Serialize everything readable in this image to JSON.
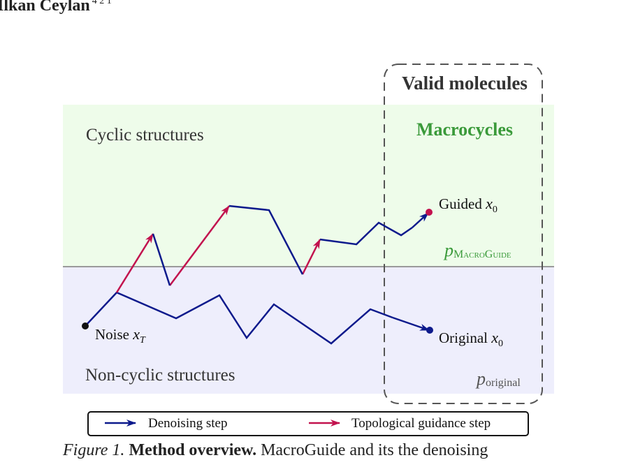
{
  "header": {
    "author": "İlkan Ceylan",
    "affiliation_marks": "4 2 1"
  },
  "diagram": {
    "valid_box_title": "Valid molecules",
    "region_top_label": "Cyclic structures",
    "region_bottom_label": "Non-cyclic structures",
    "macrocycles_label": "Macrocycles",
    "guided_label": "Guided ",
    "guided_var": "x",
    "guided_sub": "0",
    "original_label": "Original ",
    "original_var": "x",
    "original_sub": "0",
    "noise_label": "Noise ",
    "noise_var": "x",
    "noise_sub": "T",
    "p_macroguide_var": "p",
    "p_macroguide_sub": "MacroGuide",
    "p_original_var": "p",
    "p_original_sub": "original",
    "colors": {
      "cyclic_bg": "#eefcea",
      "noncyclic_bg": "#eeeefc",
      "denoise": "#0d1a8c",
      "guidance": "#c2124e",
      "macro_green": "#3a9a3a",
      "divider": "#9a9a9a"
    }
  },
  "legend": {
    "denoising_label": "Denoising step",
    "guidance_label": "Topological guidance step"
  },
  "caption": {
    "figure_label": "Figure 1.",
    "method_title": "Method overview.",
    "text": "MacroGuide and its the denoising"
  }
}
